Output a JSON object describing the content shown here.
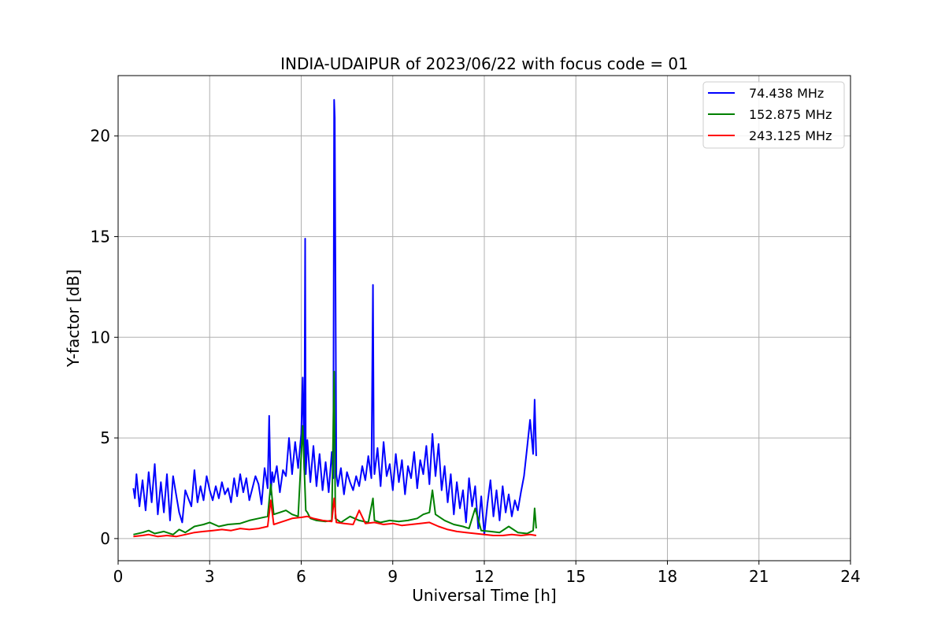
{
  "chart_data": {
    "type": "line",
    "title": "INDIA-UDAIPUR of 2023/06/22 with focus code = 01",
    "xlabel": "Universal Time [h]",
    "ylabel": "Y-factor [dB]",
    "xlim": [
      0,
      24
    ],
    "ylim": [
      -1.1,
      23
    ],
    "xticks": [
      0,
      3,
      6,
      9,
      12,
      15,
      18,
      21,
      24
    ],
    "yticks": [
      0,
      5,
      10,
      15,
      20
    ],
    "grid": true,
    "legend_position": "top-right",
    "series": [
      {
        "name": "  74.438 MHz",
        "color": "#0000ff",
        "x": [
          0.5,
          0.55,
          0.6,
          0.7,
          0.8,
          0.9,
          1.0,
          1.1,
          1.2,
          1.3,
          1.4,
          1.5,
          1.6,
          1.7,
          1.8,
          1.9,
          2.0,
          2.1,
          2.2,
          2.3,
          2.4,
          2.5,
          2.6,
          2.7,
          2.8,
          2.9,
          3.0,
          3.1,
          3.2,
          3.3,
          3.4,
          3.5,
          3.6,
          3.7,
          3.8,
          3.9,
          4.0,
          4.1,
          4.2,
          4.3,
          4.4,
          4.5,
          4.6,
          4.7,
          4.8,
          4.9,
          4.95,
          5.0,
          5.05,
          5.1,
          5.2,
          5.3,
          5.4,
          5.5,
          5.6,
          5.7,
          5.8,
          5.9,
          6.0,
          6.05,
          6.1,
          6.13,
          6.15,
          6.2,
          6.3,
          6.4,
          6.5,
          6.6,
          6.7,
          6.8,
          6.9,
          7.0,
          7.05,
          7.08,
          7.1,
          7.15,
          7.2,
          7.3,
          7.4,
          7.5,
          7.6,
          7.7,
          7.8,
          7.9,
          8.0,
          8.1,
          8.2,
          8.3,
          8.35,
          8.38,
          8.4,
          8.5,
          8.6,
          8.7,
          8.8,
          8.9,
          9.0,
          9.1,
          9.2,
          9.3,
          9.4,
          9.5,
          9.6,
          9.7,
          9.8,
          9.9,
          10.0,
          10.1,
          10.2,
          10.3,
          10.4,
          10.5,
          10.6,
          10.7,
          10.8,
          10.9,
          11.0,
          11.1,
          11.2,
          11.3,
          11.4,
          11.5,
          11.6,
          11.7,
          11.8,
          11.9,
          12.0,
          12.1,
          12.2,
          12.3,
          12.4,
          12.5,
          12.6,
          12.7,
          12.8,
          12.9,
          13.0,
          13.1,
          13.2,
          13.3,
          13.4,
          13.5,
          13.6,
          13.65,
          13.7
        ],
        "y": [
          2.5,
          2.0,
          3.2,
          1.6,
          2.9,
          1.4,
          3.3,
          1.8,
          3.7,
          1.2,
          2.8,
          1.3,
          3.2,
          0.9,
          3.1,
          2.2,
          1.3,
          0.8,
          2.4,
          2.0,
          1.6,
          3.4,
          1.8,
          2.6,
          1.9,
          3.1,
          2.4,
          1.9,
          2.6,
          2.0,
          2.8,
          2.2,
          2.5,
          1.8,
          3.0,
          2.1,
          3.2,
          2.3,
          3.0,
          1.9,
          2.5,
          3.1,
          2.7,
          1.7,
          3.5,
          2.5,
          6.1,
          2.2,
          3.3,
          2.8,
          3.6,
          2.3,
          3.4,
          3.1,
          5.0,
          3.2,
          4.8,
          3.5,
          5.2,
          8.0,
          3.4,
          14.9,
          3.2,
          4.9,
          2.8,
          4.6,
          2.6,
          4.2,
          2.4,
          3.8,
          2.3,
          4.3,
          3.0,
          21.8,
          20.9,
          3.2,
          2.6,
          3.5,
          2.2,
          3.3,
          2.8,
          2.4,
          3.1,
          2.6,
          3.6,
          2.9,
          4.1,
          3.0,
          12.6,
          4.0,
          3.2,
          4.5,
          2.6,
          4.8,
          3.1,
          3.7,
          2.4,
          4.2,
          2.8,
          3.9,
          2.2,
          3.6,
          3.0,
          4.3,
          2.5,
          3.9,
          3.2,
          4.6,
          2.7,
          5.2,
          3.1,
          4.7,
          2.4,
          3.6,
          1.8,
          3.2,
          1.2,
          2.8,
          1.5,
          2.4,
          0.8,
          3.0,
          1.6,
          2.6,
          0.5,
          2.1,
          0.2,
          1.7,
          2.9,
          1.1,
          2.4,
          0.9,
          2.6,
          1.3,
          2.2,
          1.1,
          1.9,
          1.4,
          2.3,
          3.1,
          4.5,
          5.9,
          4.2,
          6.9,
          4.1
        ]
      },
      {
        "name": "152.875 MHz",
        "color": "#008000",
        "x": [
          0.5,
          0.8,
          1.0,
          1.2,
          1.5,
          1.8,
          2.0,
          2.2,
          2.5,
          2.8,
          3.0,
          3.3,
          3.6,
          4.0,
          4.3,
          4.6,
          4.9,
          5.0,
          5.1,
          5.3,
          5.5,
          5.7,
          5.9,
          6.05,
          6.15,
          6.2,
          6.3,
          6.5,
          6.8,
          7.0,
          7.08,
          7.12,
          7.3,
          7.6,
          7.9,
          8.2,
          8.35,
          8.4,
          8.6,
          8.9,
          9.2,
          9.5,
          9.8,
          10.0,
          10.2,
          10.3,
          10.4,
          10.7,
          11.0,
          11.3,
          11.5,
          11.7,
          11.9,
          12.2,
          12.5,
          12.8,
          13.1,
          13.4,
          13.6,
          13.65,
          13.7
        ],
        "y": [
          0.2,
          0.3,
          0.4,
          0.25,
          0.35,
          0.2,
          0.45,
          0.3,
          0.6,
          0.7,
          0.8,
          0.6,
          0.7,
          0.75,
          0.9,
          1.0,
          1.1,
          2.7,
          1.2,
          1.3,
          1.4,
          1.2,
          1.1,
          5.6,
          1.4,
          1.3,
          1.0,
          0.9,
          0.85,
          0.9,
          8.3,
          1.0,
          0.8,
          1.1,
          0.9,
          0.8,
          2.0,
          0.9,
          0.8,
          0.9,
          0.85,
          0.9,
          1.0,
          1.2,
          1.3,
          2.4,
          1.2,
          0.9,
          0.7,
          0.6,
          0.5,
          1.5,
          0.4,
          0.35,
          0.3,
          0.6,
          0.3,
          0.25,
          0.4,
          1.5,
          0.5
        ]
      },
      {
        "name": "243.125 MHz",
        "color": "#ff0000",
        "x": [
          0.5,
          0.8,
          1.0,
          1.3,
          1.6,
          1.9,
          2.2,
          2.5,
          2.8,
          3.1,
          3.4,
          3.7,
          4.0,
          4.3,
          4.6,
          4.9,
          5.0,
          5.1,
          5.3,
          5.5,
          5.7,
          6.0,
          6.2,
          6.4,
          6.7,
          7.0,
          7.08,
          7.15,
          7.4,
          7.7,
          7.9,
          8.1,
          8.4,
          8.7,
          9.0,
          9.3,
          9.6,
          9.9,
          10.2,
          10.5,
          10.8,
          11.1,
          11.4,
          11.7,
          12.0,
          12.3,
          12.6,
          12.9,
          13.2,
          13.5,
          13.7
        ],
        "y": [
          0.1,
          0.15,
          0.2,
          0.1,
          0.15,
          0.1,
          0.2,
          0.3,
          0.35,
          0.4,
          0.45,
          0.4,
          0.5,
          0.45,
          0.5,
          0.6,
          1.9,
          0.7,
          0.8,
          0.9,
          1.0,
          1.05,
          1.1,
          1.0,
          0.9,
          0.85,
          2.0,
          0.8,
          0.75,
          0.7,
          1.4,
          0.75,
          0.8,
          0.7,
          0.75,
          0.65,
          0.7,
          0.75,
          0.8,
          0.6,
          0.45,
          0.35,
          0.3,
          0.25,
          0.2,
          0.15,
          0.15,
          0.2,
          0.15,
          0.2,
          0.15
        ]
      }
    ]
  }
}
